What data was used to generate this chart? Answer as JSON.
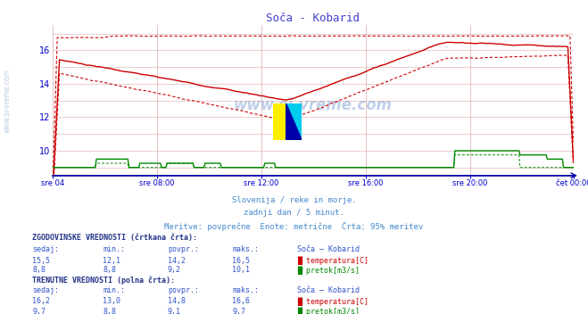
{
  "title": "Soča - Kobarid",
  "title_color": "#4040cc",
  "bg_color": "#ffffff",
  "plot_bg_color": "#ffffff",
  "grid_color": "#ddaaaa",
  "axis_color": "#0000cc",
  "watermark": "www.si-vreme.com",
  "subtitle_lines": [
    "Slovenija / reke in morje.",
    "zadnji dan / 5 minut.",
    "Meritve: povprečne  Enote: metrične  Črta: 95% meritev"
  ],
  "subtitle_color": "#4488cc",
  "xlabel_ticks": [
    "sre 04",
    "sre 08:00",
    "sre 12:00",
    "sre 16:00",
    "sre 20:00",
    "čet 00:00"
  ],
  "xlabel_tick_positions": [
    0,
    96,
    192,
    288,
    384,
    479
  ],
  "ylim": [
    8.5,
    17.5
  ],
  "yticks": [
    10,
    12,
    14,
    16
  ],
  "temp_color": "#cc0000",
  "flow_color": "#008800",
  "blue_baseline": "#0000aa",
  "n_points": 480,
  "hist_temp_sedaj": 15.5,
  "hist_temp_min": 12.1,
  "hist_temp_povpr": 14.2,
  "hist_temp_maks": 16.5,
  "hist_flow_sedaj": 8.8,
  "hist_flow_min": 8.8,
  "hist_flow_povpr": 9.2,
  "hist_flow_maks": 10.1,
  "curr_temp_sedaj": 16.2,
  "curr_temp_min": 13.0,
  "curr_temp_povpr": 14.8,
  "curr_temp_maks": 16.6,
  "curr_flow_sedaj": 9.7,
  "curr_flow_min": 8.8,
  "curr_flow_povpr": 9.1,
  "curr_flow_maks": 9.7,
  "text_color_blue": "#3355cc",
  "text_color_dark": "#223388"
}
